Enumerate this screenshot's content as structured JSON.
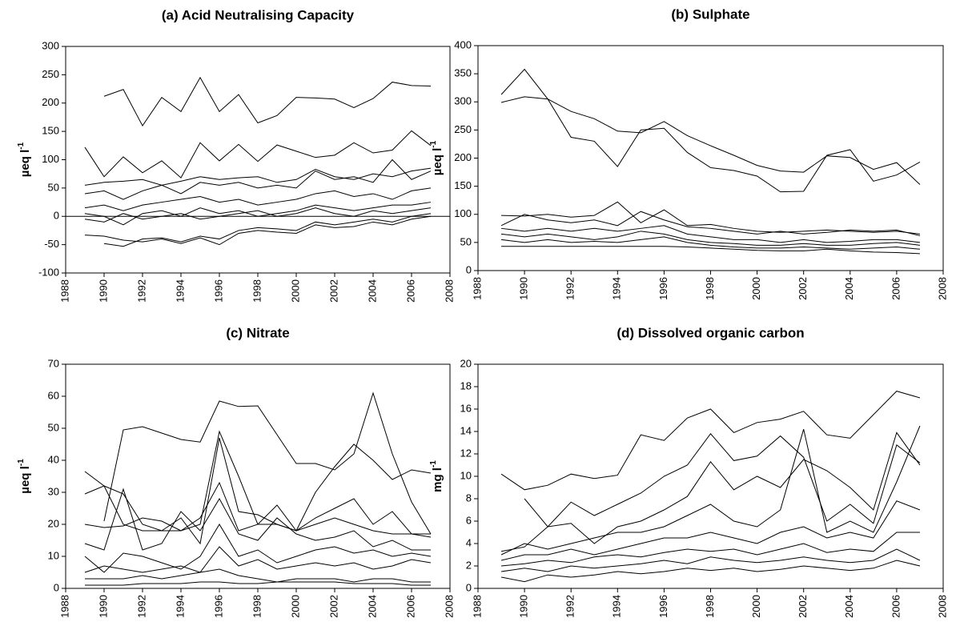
{
  "chart_data": [
    {
      "type": "line",
      "title": "(a) Acid Neutralising Capacity",
      "ylabel": {
        "text": "µeq l",
        "superscript": "-1"
      },
      "xlim": [
        1988,
        2008
      ],
      "xticks": [
        1988,
        1990,
        1992,
        1994,
        1996,
        1998,
        2000,
        2002,
        2004,
        2006,
        2008
      ],
      "ylim": [
        -100,
        300
      ],
      "yticks": [
        -100,
        -50,
        0,
        50,
        100,
        150,
        200,
        250,
        300
      ],
      "zero_line": true,
      "x": [
        1989,
        1990,
        1991,
        1992,
        1993,
        1994,
        1995,
        1996,
        1997,
        1998,
        1999,
        2000,
        2001,
        2002,
        2003,
        2004,
        2005,
        2006,
        2007
      ],
      "series": [
        {
          "color": "#000000",
          "values": [
            null,
            212,
            224,
            160,
            210,
            185,
            245,
            185,
            215,
            165,
            178,
            210,
            209,
            207,
            192,
            208,
            237,
            231,
            230
          ]
        },
        {
          "color": "#000000",
          "values": [
            122,
            70,
            105,
            77,
            98,
            68,
            130,
            98,
            127,
            97,
            126,
            115,
            104,
            108,
            130,
            112,
            117,
            151,
            125
          ]
        },
        {
          "color": "#000000",
          "values": [
            55,
            60,
            62,
            65,
            55,
            62,
            70,
            65,
            68,
            70,
            60,
            65,
            83,
            70,
            65,
            75,
            70,
            80,
            85
          ]
        },
        {
          "color": "#000000",
          "values": [
            40,
            45,
            30,
            45,
            55,
            40,
            60,
            55,
            60,
            50,
            55,
            50,
            80,
            65,
            70,
            60,
            100,
            65,
            80
          ]
        },
        {
          "color": "#000000",
          "values": [
            15,
            20,
            10,
            20,
            25,
            30,
            35,
            25,
            30,
            20,
            25,
            30,
            40,
            45,
            35,
            40,
            30,
            45,
            50
          ]
        },
        {
          "color": "#000000",
          "values": [
            5,
            0,
            -15,
            5,
            10,
            0,
            15,
            5,
            10,
            0,
            5,
            10,
            20,
            15,
            10,
            15,
            20,
            20,
            25
          ]
        },
        {
          "color": "#000000",
          "values": [
            -5,
            -10,
            5,
            -5,
            0,
            5,
            -5,
            0,
            5,
            10,
            0,
            5,
            15,
            5,
            0,
            10,
            5,
            10,
            15
          ]
        },
        {
          "color": "#000000",
          "values": [
            -33,
            -35,
            -42,
            -45,
            -40,
            -48,
            -38,
            -50,
            -30,
            -25,
            -28,
            -30,
            -15,
            -20,
            -18,
            -10,
            -15,
            -5,
            0
          ]
        },
        {
          "color": "#000000",
          "values": [
            null,
            -48,
            -53,
            -40,
            -38,
            -45,
            -35,
            -40,
            -25,
            -20,
            -22,
            -25,
            -10,
            -15,
            -10,
            -5,
            -10,
            0,
            5
          ]
        }
      ]
    },
    {
      "type": "line",
      "title": "(b) Sulphate",
      "ylabel": {
        "text": "µeq l",
        "superscript": "-1"
      },
      "xlim": [
        1988,
        2008
      ],
      "xticks": [
        1988,
        1990,
        1992,
        1994,
        1996,
        1998,
        2000,
        2002,
        2004,
        2006,
        2008
      ],
      "ylim": [
        0,
        400
      ],
      "yticks": [
        0,
        50,
        100,
        150,
        200,
        250,
        300,
        350,
        400
      ],
      "x": [
        1989,
        1990,
        1991,
        1992,
        1993,
        1994,
        1995,
        1996,
        1997,
        1998,
        1999,
        2000,
        2001,
        2002,
        2003,
        2004,
        2005,
        2006,
        2007
      ],
      "series": [
        {
          "color": "#000000",
          "values": [
            313,
            358,
            305,
            283,
            270,
            248,
            245,
            265,
            240,
            222,
            205,
            187,
            177,
            175,
            204,
            201,
            180,
            192,
            153
          ]
        },
        {
          "color": "#000000",
          "values": [
            299,
            309,
            305,
            237,
            230,
            185,
            250,
            253,
            210,
            183,
            178,
            168,
            140,
            141,
            205,
            215,
            159,
            170,
            193
          ]
        },
        {
          "color": "#000000",
          "values": [
            98,
            97,
            100,
            95,
            98,
            122,
            85,
            108,
            80,
            82,
            75,
            70,
            68,
            70,
            72,
            70,
            68,
            70,
            65
          ]
        },
        {
          "color": "#000000",
          "values": [
            80,
            100,
            90,
            85,
            90,
            80,
            105,
            90,
            78,
            75,
            70,
            65,
            70,
            65,
            68,
            72,
            70,
            72,
            62
          ]
        },
        {
          "color": "#000000",
          "values": [
            75,
            70,
            75,
            70,
            75,
            70,
            75,
            80,
            65,
            60,
            55,
            55,
            50,
            55,
            50,
            52,
            55,
            55,
            50
          ]
        },
        {
          "color": "#000000",
          "values": [
            65,
            60,
            65,
            60,
            55,
            60,
            70,
            65,
            55,
            50,
            48,
            45,
            45,
            48,
            45,
            45,
            48,
            50,
            45
          ]
        },
        {
          "color": "#000000",
          "values": [
            55,
            50,
            55,
            50,
            52,
            50,
            55,
            60,
            50,
            45,
            42,
            40,
            40,
            42,
            40,
            38,
            40,
            42,
            38
          ]
        },
        {
          "color": "#000000",
          "values": [
            43,
            43,
            43,
            43,
            43,
            43,
            43,
            43,
            42,
            40,
            38,
            36,
            35,
            35,
            38,
            35,
            33,
            32,
            30
          ]
        }
      ]
    },
    {
      "type": "line",
      "title": "(c) Nitrate",
      "ylabel": {
        "text": "µeq l",
        "superscript": "-1"
      },
      "xlim": [
        1988,
        2008
      ],
      "xticks": [
        1988,
        1990,
        1992,
        1994,
        1996,
        1998,
        2000,
        2002,
        2004,
        2006,
        2008
      ],
      "ylim": [
        0,
        70
      ],
      "yticks": [
        0,
        10,
        20,
        30,
        40,
        50,
        60,
        70
      ],
      "x": [
        1989,
        1990,
        1991,
        1992,
        1993,
        1994,
        1995,
        1996,
        1997,
        1998,
        1999,
        2000,
        2001,
        2002,
        2003,
        2004,
        2005,
        2006,
        2007
      ],
      "series": [
        {
          "color": "#000000",
          "values": [
            null,
            21,
            49.5,
            50.5,
            48.5,
            46.5,
            45.7,
            58.5,
            56.8,
            57,
            48,
            39,
            39,
            37,
            42,
            61,
            42,
            27,
            17
          ]
        },
        {
          "color": "#000000",
          "values": [
            36.5,
            32,
            29.5,
            20,
            18,
            18,
            20,
            49,
            35,
            20,
            20,
            18,
            30,
            38,
            45,
            40,
            34,
            37,
            36
          ]
        },
        {
          "color": "#000000",
          "values": [
            29.5,
            32,
            20,
            18,
            18,
            22,
            14,
            47,
            24,
            23,
            20,
            18,
            22,
            25,
            28,
            20,
            24,
            17,
            17
          ]
        },
        {
          "color": "#000000",
          "values": [
            20,
            19,
            19.5,
            22,
            21,
            18,
            22,
            33,
            18,
            20,
            26,
            18,
            20,
            22,
            20,
            18,
            17,
            17,
            16
          ]
        },
        {
          "color": "#000000",
          "values": [
            14,
            12,
            31,
            12,
            14,
            24,
            18,
            28,
            17,
            15,
            22,
            17,
            15,
            16,
            18,
            13,
            15,
            12,
            12
          ]
        },
        {
          "color": "#000000",
          "values": [
            10,
            5,
            11,
            10,
            8,
            6,
            10,
            20,
            10,
            12,
            8,
            10,
            12,
            13,
            11,
            12,
            10,
            11,
            10
          ]
        },
        {
          "color": "#000000",
          "values": [
            5,
            7,
            6,
            5,
            6,
            7,
            5,
            13,
            7,
            9,
            6,
            7,
            8,
            7,
            8,
            6,
            7,
            9,
            8
          ]
        },
        {
          "color": "#000000",
          "values": [
            3,
            3,
            3,
            4,
            3,
            4,
            5,
            6,
            4,
            3,
            2,
            3,
            3,
            3,
            2,
            3,
            3,
            2,
            2
          ]
        },
        {
          "color": "#000000",
          "values": [
            1,
            1,
            1,
            1.5,
            1.5,
            1.5,
            2,
            2,
            1.5,
            1.5,
            2,
            2,
            2,
            2,
            1.5,
            1.5,
            1.5,
            1,
            1
          ]
        }
      ]
    },
    {
      "type": "line",
      "title": "(d) Dissolved organic carbon",
      "ylabel": {
        "text": "mg l",
        "superscript": "-1"
      },
      "xlim": [
        1988,
        2008
      ],
      "xticks": [
        1988,
        1990,
        1992,
        1994,
        1996,
        1998,
        2000,
        2002,
        2004,
        2006,
        2008
      ],
      "ylim": [
        0,
        20
      ],
      "yticks": [
        0,
        2,
        4,
        6,
        8,
        10,
        12,
        14,
        16,
        18,
        20
      ],
      "x": [
        1989,
        1990,
        1991,
        1992,
        1993,
        1994,
        1995,
        1996,
        1997,
        1998,
        1999,
        2000,
        2001,
        2002,
        2003,
        2004,
        2005,
        2006,
        2007
      ],
      "series": [
        {
          "color": "#000000",
          "values": [
            10.2,
            8.8,
            9.2,
            10.2,
            9.8,
            10.1,
            13.7,
            13.2,
            15.2,
            16,
            13.9,
            14.8,
            15.1,
            15.8,
            13.7,
            13.4,
            15.5,
            17.6,
            17
          ]
        },
        {
          "color": "#000000",
          "values": [
            null,
            8,
            5.5,
            5.8,
            4,
            5.5,
            6,
            7,
            8.2,
            11.3,
            8.8,
            10,
            9,
            11.5,
            10.5,
            9,
            7,
            13.9,
            11
          ]
        },
        {
          "color": "#000000",
          "values": [
            3.3,
            3.7,
            5.5,
            7.7,
            6.5,
            7.5,
            8.5,
            10,
            11,
            13.8,
            11.4,
            11.8,
            13.6,
            11.7,
            6,
            7.5,
            5.8,
            12.8,
            11.2
          ]
        },
        {
          "color": "#000000",
          "values": [
            3,
            4,
            3.5,
            4,
            4.5,
            5,
            5,
            5.5,
            6.5,
            7.5,
            6,
            5.5,
            7,
            14.2,
            5,
            6,
            5,
            9.5,
            14.5
          ]
        },
        {
          "color": "#000000",
          "values": [
            2.5,
            3,
            3,
            3.5,
            3,
            3.5,
            4,
            4.5,
            4.5,
            5,
            4.5,
            4,
            5,
            5.5,
            4.5,
            5,
            4.5,
            7.8,
            7
          ]
        },
        {
          "color": "#000000",
          "values": [
            2,
            2.2,
            2.5,
            2.3,
            2.8,
            3,
            2.8,
            3.2,
            3.5,
            3.3,
            3.5,
            3,
            3.5,
            4,
            3.2,
            3.5,
            3.3,
            5,
            5
          ]
        },
        {
          "color": "#000000",
          "values": [
            1.5,
            1.8,
            1.5,
            2,
            1.8,
            2,
            2.2,
            2.5,
            2.2,
            2.8,
            2.5,
            2.3,
            2.5,
            2.8,
            2.5,
            2.3,
            2.5,
            3.5,
            2.5
          ]
        },
        {
          "color": "#000000",
          "values": [
            1,
            0.6,
            1.2,
            1,
            1.2,
            1.5,
            1.3,
            1.5,
            1.8,
            1.6,
            1.8,
            1.5,
            1.7,
            2,
            1.8,
            1.6,
            1.8,
            2.5,
            2
          ]
        }
      ]
    }
  ]
}
